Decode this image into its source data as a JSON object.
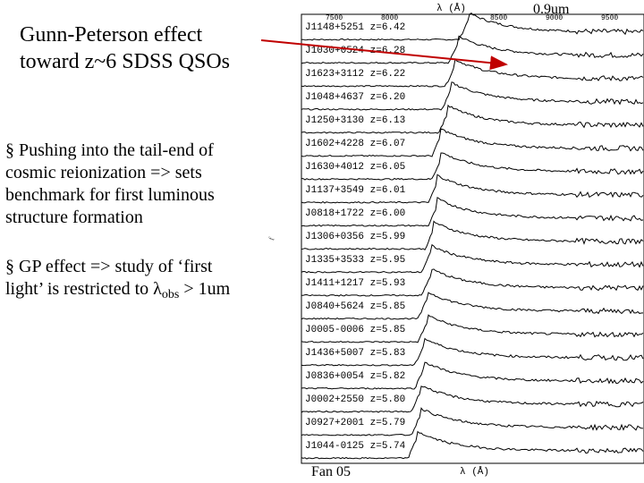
{
  "title_lines": [
    "Gunn-Peterson effect",
    "toward z~6 SDSS QSOs"
  ],
  "bullet1": {
    "marker": "§",
    "lines": [
      "Pushing into the tail-end of",
      "cosmic reionization => sets",
      "benchmark for first luminous",
      "structure formation"
    ]
  },
  "bullet2": {
    "marker": "§",
    "line1": "GP effect => study of ‘first",
    "line2_pre": "light’ is restricted to ",
    "lambda": "λ",
    "sub": "obs",
    "line2_post": " > 1um"
  },
  "label_09um": "0.9um",
  "axis_label_top": "λ (Å)",
  "axis_label_bottom": "λ (Å)",
  "axis_ticks": [
    "7500",
    "8000",
    "8500",
    "9000",
    "9500"
  ],
  "side_glyph": "f",
  "credit": "Fan 05",
  "qsos": [
    {
      "name": "J1148+5251",
      "z": "6.42",
      "break": 0.46
    },
    {
      "name": "J1030+0524",
      "z": "6.28",
      "break": 0.43
    },
    {
      "name": "J1623+3112",
      "z": "6.22",
      "break": 0.42
    },
    {
      "name": "J1048+4637",
      "z": "6.20",
      "break": 0.41
    },
    {
      "name": "J1250+3130",
      "z": "6.13",
      "break": 0.4
    },
    {
      "name": "J1602+4228",
      "z": "6.07",
      "break": 0.38
    },
    {
      "name": "J1630+4012",
      "z": "6.05",
      "break": 0.38
    },
    {
      "name": "J1137+3549",
      "z": "6.01",
      "break": 0.37
    },
    {
      "name": "J0818+1722",
      "z": "6.00",
      "break": 0.37
    },
    {
      "name": "J1306+0356",
      "z": "5.99",
      "break": 0.36
    },
    {
      "name": "J1335+3533",
      "z": "5.95",
      "break": 0.35
    },
    {
      "name": "J1411+1217",
      "z": "5.93",
      "break": 0.35
    },
    {
      "name": "J0840+5624",
      "z": "5.85",
      "break": 0.34
    },
    {
      "name": "J0005-0006",
      "z": "5.85",
      "break": 0.34
    },
    {
      "name": "J1436+5007",
      "z": "5.83",
      "break": 0.33
    },
    {
      "name": "J0836+0054",
      "z": "5.82",
      "break": 0.33
    },
    {
      "name": "J0002+2550",
      "z": "5.80",
      "break": 0.32
    },
    {
      "name": "J0927+2001",
      "z": "5.79",
      "break": 0.32
    },
    {
      "name": "J1044-0125",
      "z": "5.74",
      "break": 0.31
    }
  ]
}
